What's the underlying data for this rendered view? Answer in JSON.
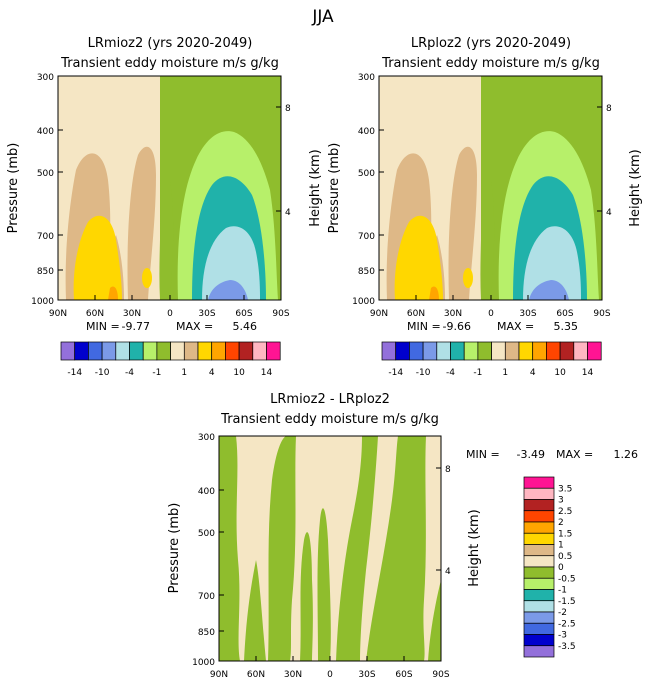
{
  "figure_title": "JJA",
  "chart_data": [
    {
      "type": "heatmap",
      "title": "LRmioz2 (yrs 2020-2049)",
      "subtitle": "Transient eddy moisture m/s g/kg",
      "ylabel": "Pressure (mb)",
      "ylabel_right": "Height (km)",
      "x_ticks": [
        "90N",
        "60N",
        "30N",
        "0",
        "30S",
        "60S",
        "90S"
      ],
      "y_ticks": [
        "300",
        "400",
        "500",
        "700",
        "850",
        "1000"
      ],
      "right_ticks": [
        "8",
        "4"
      ],
      "min_label": "MIN =",
      "min_value": "-9.77",
      "max_label": "MAX =",
      "max_value": "5.46"
    },
    {
      "type": "heatmap",
      "title": "LRploz2 (yrs 2020-2049)",
      "subtitle": "Transient eddy moisture m/s g/kg",
      "ylabel": "Pressure (mb)",
      "ylabel_right": "Height (km)",
      "x_ticks": [
        "90N",
        "60N",
        "30N",
        "0",
        "30S",
        "60S",
        "90S"
      ],
      "y_ticks": [
        "300",
        "400",
        "500",
        "700",
        "850",
        "1000"
      ],
      "right_ticks": [
        "8",
        "4"
      ],
      "min_label": "MIN =",
      "min_value": "-9.66",
      "max_label": "MAX =",
      "max_value": "5.35"
    },
    {
      "type": "heatmap",
      "title": "LRmioz2 - LRploz2",
      "subtitle": "Transient eddy moisture m/s g/kg",
      "ylabel": "Pressure (mb)",
      "ylabel_right": "Height (km)",
      "x_ticks": [
        "90N",
        "60N",
        "30N",
        "0",
        "30S",
        "60S",
        "90S"
      ],
      "y_ticks": [
        "300",
        "400",
        "500",
        "700",
        "850",
        "1000"
      ],
      "right_ticks": [
        "8",
        "4"
      ],
      "min_label": "MIN =",
      "min_value": "-3.49",
      "max_label": "MAX =",
      "max_value": "1.26"
    }
  ],
  "colorbar_top": {
    "colors": [
      "#9370db",
      "#0000cd",
      "#4169e1",
      "#7b9ae8",
      "#b0e0e6",
      "#20b2aa",
      "#b7f06a",
      "#8fbd2d",
      "#f5e6c4",
      "#deb887",
      "#ffd700",
      "#ffa500",
      "#ff4500",
      "#b22222",
      "#ffb6c1",
      "#ff1493"
    ],
    "labels": [
      "-14",
      "-10",
      "-4",
      "-1",
      "1",
      "4",
      "10",
      "14"
    ]
  },
  "colorbar_diff": {
    "colors": [
      "#ff1493",
      "#ffb6c1",
      "#b22222",
      "#ff4500",
      "#ffa500",
      "#ffd700",
      "#deb887",
      "#f5e6c4",
      "#8fbd2d",
      "#b7f06a",
      "#20b2aa",
      "#b0e0e6",
      "#7b9ae8",
      "#4169e1",
      "#0000cd",
      "#9370db"
    ],
    "labels": [
      "3.5",
      "3",
      "2.5",
      "2",
      "1.5",
      "1",
      "0.5",
      "0",
      "-0.5",
      "-1",
      "-1.5",
      "-2",
      "-2.5",
      "-3",
      "-3.5"
    ]
  }
}
